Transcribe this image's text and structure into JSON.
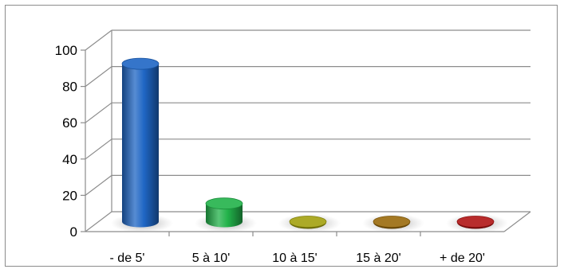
{
  "chart_data": {
    "type": "bar",
    "style": "3d-cylinder",
    "categories": [
      "- de 5'",
      "5 à 10'",
      "10 à 15'",
      "15 à 20'",
      "+ de 20'"
    ],
    "values": [
      87,
      10,
      0,
      0,
      0
    ],
    "yticks": [
      0,
      20,
      40,
      60,
      80,
      100
    ],
    "ylim": [
      0,
      100
    ],
    "grid": true,
    "legend": "none",
    "colors": {
      "series_colors": [
        "#1f66c4",
        "#22b24a",
        "#a3a10f",
        "#9a6a0c",
        "#b01515"
      ],
      "grid": "#8c8c8c",
      "axis": "#8c8c8c"
    }
  }
}
